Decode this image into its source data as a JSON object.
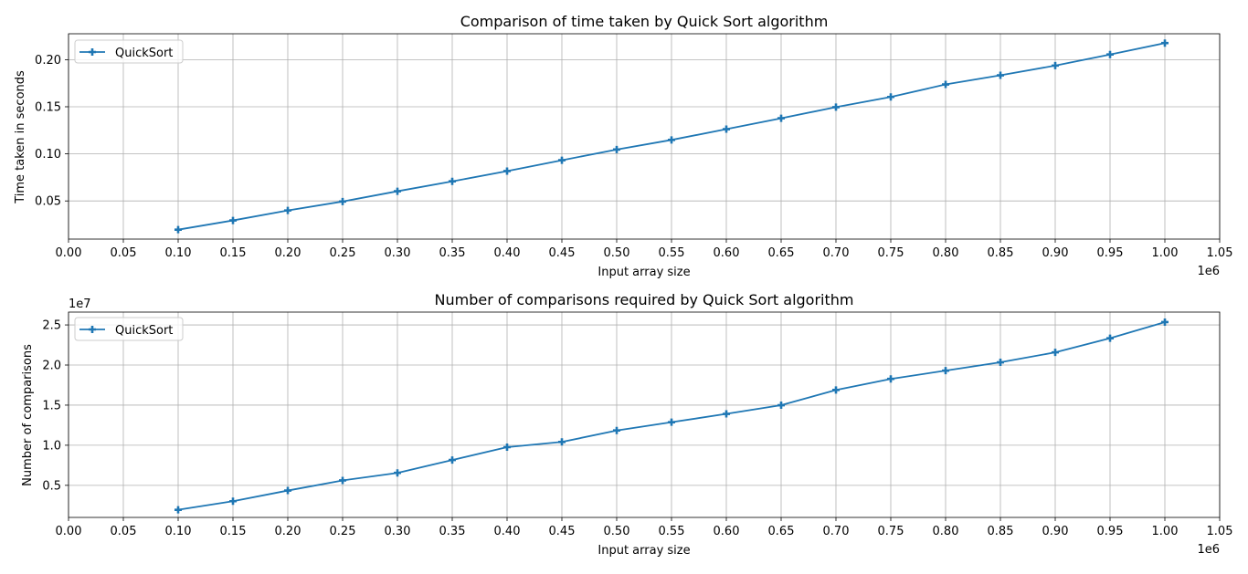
{
  "chart_data": [
    {
      "type": "line",
      "title": "Comparison of time taken by Quick Sort algorithm",
      "xlabel": "Input array size",
      "ylabel": "Time taken in seconds",
      "x_scale_label": "1e6",
      "y_scale_label": "",
      "xlim": [
        0,
        1050000
      ],
      "ylim": [
        0.0095,
        0.2275
      ],
      "x_ticks": [
        0,
        50000,
        100000,
        150000,
        200000,
        250000,
        300000,
        350000,
        400000,
        450000,
        500000,
        550000,
        600000,
        650000,
        700000,
        750000,
        800000,
        850000,
        900000,
        950000,
        1000000,
        1050000
      ],
      "x_tick_labels": [
        "0.00",
        "0.05",
        "0.10",
        "0.15",
        "0.20",
        "0.25",
        "0.30",
        "0.35",
        "0.40",
        "0.45",
        "0.50",
        "0.55",
        "0.60",
        "0.65",
        "0.70",
        "0.75",
        "0.80",
        "0.85",
        "0.90",
        "0.95",
        "1.00",
        "1.05"
      ],
      "y_ticks": [
        0.05,
        0.1,
        0.15,
        0.2
      ],
      "y_tick_labels": [
        "0.05",
        "0.10",
        "0.15",
        "0.20"
      ],
      "grid": true,
      "legend": "top-left",
      "x": [
        100000,
        150000,
        200000,
        250000,
        300000,
        350000,
        400000,
        450000,
        500000,
        550000,
        600000,
        650000,
        700000,
        750000,
        800000,
        850000,
        900000,
        950000,
        1000000
      ],
      "series": [
        {
          "name": "QuickSort",
          "color": "#1f77b4",
          "marker": "plus",
          "values": [
            0.0195,
            0.0293,
            0.0399,
            0.0494,
            0.0603,
            0.0708,
            0.0817,
            0.0932,
            0.1046,
            0.1148,
            0.1262,
            0.1378,
            0.1496,
            0.1604,
            0.1737,
            0.1834,
            0.1937,
            0.2055,
            0.2176
          ]
        }
      ]
    },
    {
      "type": "line",
      "title": "Number of comparisons required by Quick Sort algorithm",
      "xlabel": "Input array size",
      "ylabel": "Number of comparisons",
      "x_scale_label": "1e6",
      "y_scale_label": "1e7",
      "xlim": [
        0,
        1050000
      ],
      "ylim": [
        1.0,
        26.6
      ],
      "x_ticks": [
        0,
        50000,
        100000,
        150000,
        200000,
        250000,
        300000,
        350000,
        400000,
        450000,
        500000,
        550000,
        600000,
        650000,
        700000,
        750000,
        800000,
        850000,
        900000,
        950000,
        1000000,
        1050000
      ],
      "x_tick_labels": [
        "0.00",
        "0.05",
        "0.10",
        "0.15",
        "0.20",
        "0.25",
        "0.30",
        "0.35",
        "0.40",
        "0.45",
        "0.50",
        "0.55",
        "0.60",
        "0.65",
        "0.70",
        "0.75",
        "0.80",
        "0.85",
        "0.90",
        "0.95",
        "1.00",
        "1.05"
      ],
      "y_ticks": [
        5,
        10,
        15,
        20,
        25
      ],
      "y_tick_labels": [
        "0.5",
        "1.0",
        "1.5",
        "2.0",
        "2.5"
      ],
      "grid": true,
      "legend": "top-left",
      "x": [
        100000,
        150000,
        200000,
        250000,
        300000,
        350000,
        400000,
        450000,
        500000,
        550000,
        600000,
        650000,
        700000,
        750000,
        800000,
        850000,
        900000,
        950000,
        1000000
      ],
      "series": [
        {
          "name": "QuickSort",
          "color": "#1f77b4",
          "marker": "plus",
          "values": [
            1.95,
            3.02,
            4.35,
            5.61,
            6.55,
            8.16,
            9.76,
            10.41,
            11.84,
            12.87,
            13.91,
            14.99,
            16.89,
            18.27,
            19.3,
            20.34,
            21.58,
            23.34,
            25.35
          ]
        }
      ]
    }
  ]
}
